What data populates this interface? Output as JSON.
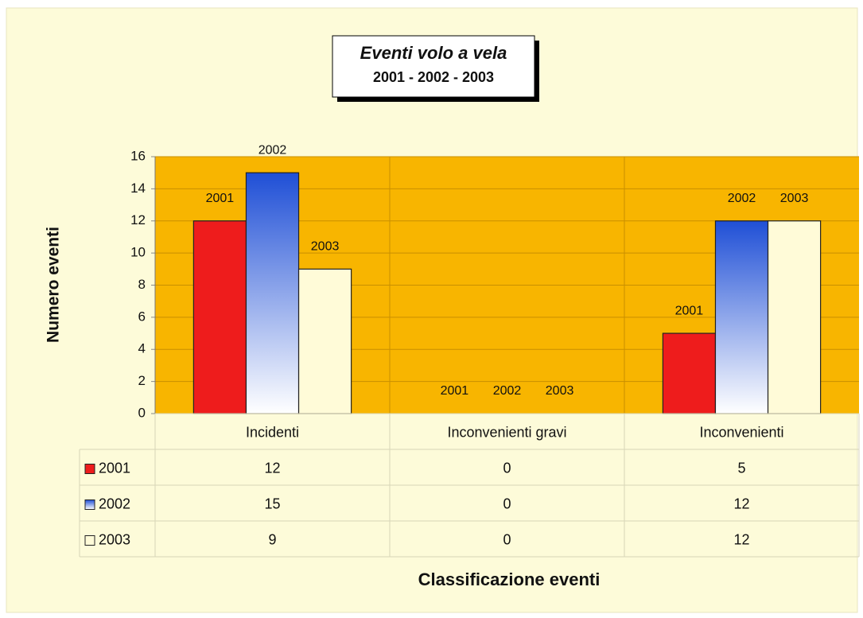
{
  "chart_data": {
    "type": "bar",
    "title": "Eventi volo a vela",
    "subtitle": "2001 - 2002 - 2003",
    "y_axis_label": "Numero eventi",
    "x_axis_label": "Classificazione eventi",
    "categories": [
      "Incidenti",
      "Inconvenienti gravi",
      "Inconvenienti"
    ],
    "series": [
      {
        "name": "2001",
        "color": "#ee1c1c",
        "values": [
          12,
          0,
          5
        ]
      },
      {
        "name": "2002",
        "color": "#1f4fd6",
        "gradient": true,
        "values": [
          15,
          0,
          12
        ]
      },
      {
        "name": "2003",
        "color": "#fffbd8",
        "values": [
          9,
          0,
          12
        ]
      }
    ],
    "ylim": [
      0,
      16
    ],
    "yticks": [
      0,
      2,
      4,
      6,
      8,
      10,
      12,
      14,
      16
    ],
    "grid": true
  }
}
